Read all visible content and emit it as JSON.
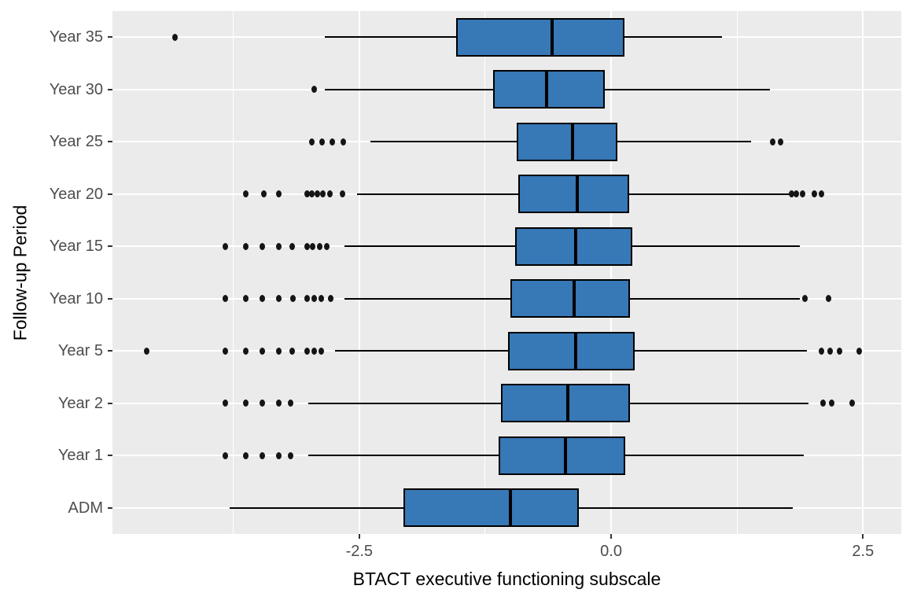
{
  "figure": {
    "background": "#FFFFFF",
    "panel_background": "#EBEBEB",
    "grid_color": "#FFFFFF",
    "box_fill": "#3778B6",
    "box_stroke": "#000000",
    "outlier_color": "#151515",
    "axis_text_color": "#4D4D4D",
    "axis_title_color": "#000000"
  },
  "chart_data": {
    "type": "boxplot",
    "orientation": "horizontal",
    "title": "",
    "xlabel": "BTACT executive functioning subscale",
    "ylabel": "Follow-up Period",
    "xlim": [
      -4.95,
      2.88
    ],
    "x_ticks": [
      {
        "value": -2.5,
        "label": "-2.5"
      },
      {
        "value": 0,
        "label": "0.0"
      },
      {
        "value": 2.5,
        "label": "2.5"
      }
    ],
    "x_minor_gridlines": [
      -3.75,
      -1.25,
      1.25
    ],
    "grid": "major-and-minor-vertical, major-horizontal-per-category",
    "legend": "none",
    "categories_top_to_bottom": [
      "Year 35",
      "Year 30",
      "Year 25",
      "Year 20",
      "Year 15",
      "Year 10",
      "Year 5",
      "Year 2",
      "Year 1",
      "ADM"
    ],
    "boxes": [
      {
        "category": "Year 35",
        "whisker_low": -2.84,
        "q1": -1.54,
        "median": -0.59,
        "q3": 0.13,
        "whisker_high": 1.1,
        "outliers": [
          -4.33
        ]
      },
      {
        "category": "Year 30",
        "whisker_low": -2.84,
        "q1": -1.17,
        "median": -0.64,
        "q3": -0.06,
        "whisker_high": 1.58,
        "outliers": [
          -2.95
        ]
      },
      {
        "category": "Year 25",
        "whisker_low": -2.39,
        "q1": -0.94,
        "median": -0.38,
        "q3": 0.06,
        "whisker_high": 1.39,
        "outliers": [
          -2.97,
          -2.87,
          -2.77,
          -2.66,
          1.6,
          1.68
        ]
      },
      {
        "category": "Year 20",
        "whisker_low": -2.52,
        "q1": -0.92,
        "median": -0.34,
        "q3": 0.18,
        "whisker_high": 1.77,
        "outliers": [
          -3.63,
          -3.45,
          -3.3,
          -3.02,
          -2.97,
          -2.92,
          -2.86,
          -2.79,
          -2.67,
          1.79,
          1.84,
          1.9,
          2.02,
          2.09
        ]
      },
      {
        "category": "Year 15",
        "whisker_low": -2.65,
        "q1": -0.95,
        "median": -0.35,
        "q3": 0.21,
        "whisker_high": 1.87,
        "outliers": [
          -3.83,
          -3.63,
          -3.46,
          -3.3,
          -3.17,
          -3.02,
          -2.96,
          -2.89,
          -2.82
        ]
      },
      {
        "category": "Year 10",
        "whisker_low": -2.65,
        "q1": -1.0,
        "median": -0.37,
        "q3": 0.19,
        "whisker_high": 1.87,
        "outliers": [
          -3.83,
          -3.63,
          -3.46,
          -3.3,
          -3.16,
          -3.02,
          -2.95,
          -2.88,
          -2.78,
          1.92,
          2.16
        ]
      },
      {
        "category": "Year 5",
        "whisker_low": -2.74,
        "q1": -1.02,
        "median": -0.35,
        "q3": 0.23,
        "whisker_high": 1.94,
        "outliers": [
          -4.61,
          -3.83,
          -3.63,
          -3.46,
          -3.3,
          -3.17,
          -3.02,
          -2.95,
          -2.88,
          2.09,
          2.17,
          2.27,
          2.46
        ]
      },
      {
        "category": "Year 2",
        "whisker_low": -3.01,
        "q1": -1.09,
        "median": -0.43,
        "q3": 0.19,
        "whisker_high": 1.96,
        "outliers": [
          -3.83,
          -3.63,
          -3.46,
          -3.3,
          -3.18,
          2.1,
          2.19,
          2.39
        ]
      },
      {
        "category": "Year 1",
        "whisker_low": -3.01,
        "q1": -1.12,
        "median": -0.45,
        "q3": 0.14,
        "whisker_high": 1.91,
        "outliers": [
          -3.83,
          -3.63,
          -3.46,
          -3.3,
          -3.18
        ]
      },
      {
        "category": "ADM",
        "whisker_low": -3.79,
        "q1": -2.06,
        "median": -1.0,
        "q3": -0.32,
        "whisker_high": 1.8,
        "outliers": []
      }
    ]
  }
}
